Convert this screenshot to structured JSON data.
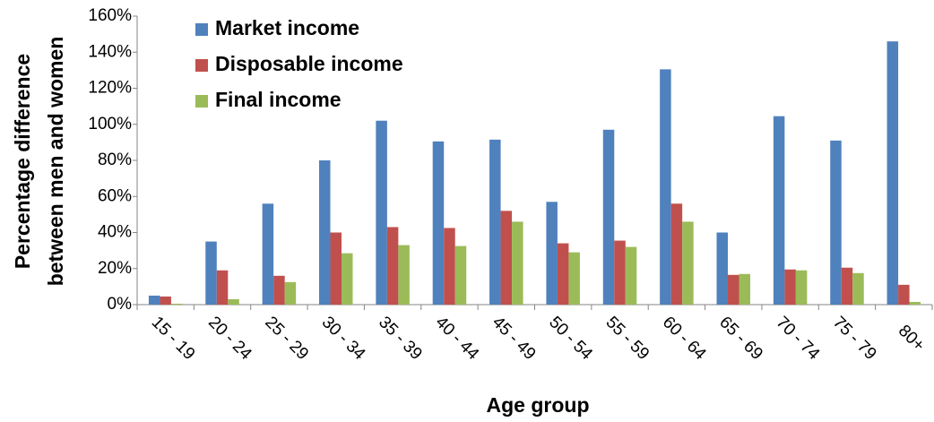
{
  "chart_data": {
    "type": "bar",
    "xlabel": "Age group",
    "ylabel": [
      "Percentage difference",
      "between  men and women"
    ],
    "categories": [
      "15 - 19",
      "20 - 24",
      "25 - 29",
      "30 - 34",
      "35 - 39",
      "40 - 44",
      "45 - 49",
      "50 - 54",
      "55 - 59",
      "60 - 64",
      "65 - 69",
      "70 - 74",
      "75 - 79",
      "80+"
    ],
    "series": [
      {
        "name": "Market income",
        "color": "#4f81bd",
        "values": [
          5,
          35,
          56,
          80,
          102,
          90.5,
          91.5,
          57,
          97,
          130.5,
          40,
          104.5,
          91,
          146
        ]
      },
      {
        "name": "Disposable income",
        "color": "#c0504d",
        "values": [
          4.5,
          19,
          16,
          40,
          43,
          42.5,
          52,
          34,
          35.5,
          56,
          16.5,
          19.5,
          20.5,
          11
        ]
      },
      {
        "name": "Final income",
        "color": "#9bbb59",
        "values": [
          0.5,
          3,
          12.5,
          28.5,
          33,
          32.5,
          46,
          29,
          32,
          46,
          17,
          19,
          17.5,
          1.5
        ]
      }
    ],
    "ylim": [
      0,
      160
    ],
    "yticks": [
      {
        "value": 0,
        "label": "0%"
      },
      {
        "value": 20,
        "label": "20%"
      },
      {
        "value": 40,
        "label": "40%"
      },
      {
        "value": 60,
        "label": "60%"
      },
      {
        "value": 80,
        "label": "80%"
      },
      {
        "value": 100,
        "label": "100%"
      },
      {
        "value": 120,
        "label": "120%"
      },
      {
        "value": 140,
        "label": "140%"
      },
      {
        "value": 160,
        "label": "160%"
      }
    ],
    "legend": "top-left"
  }
}
